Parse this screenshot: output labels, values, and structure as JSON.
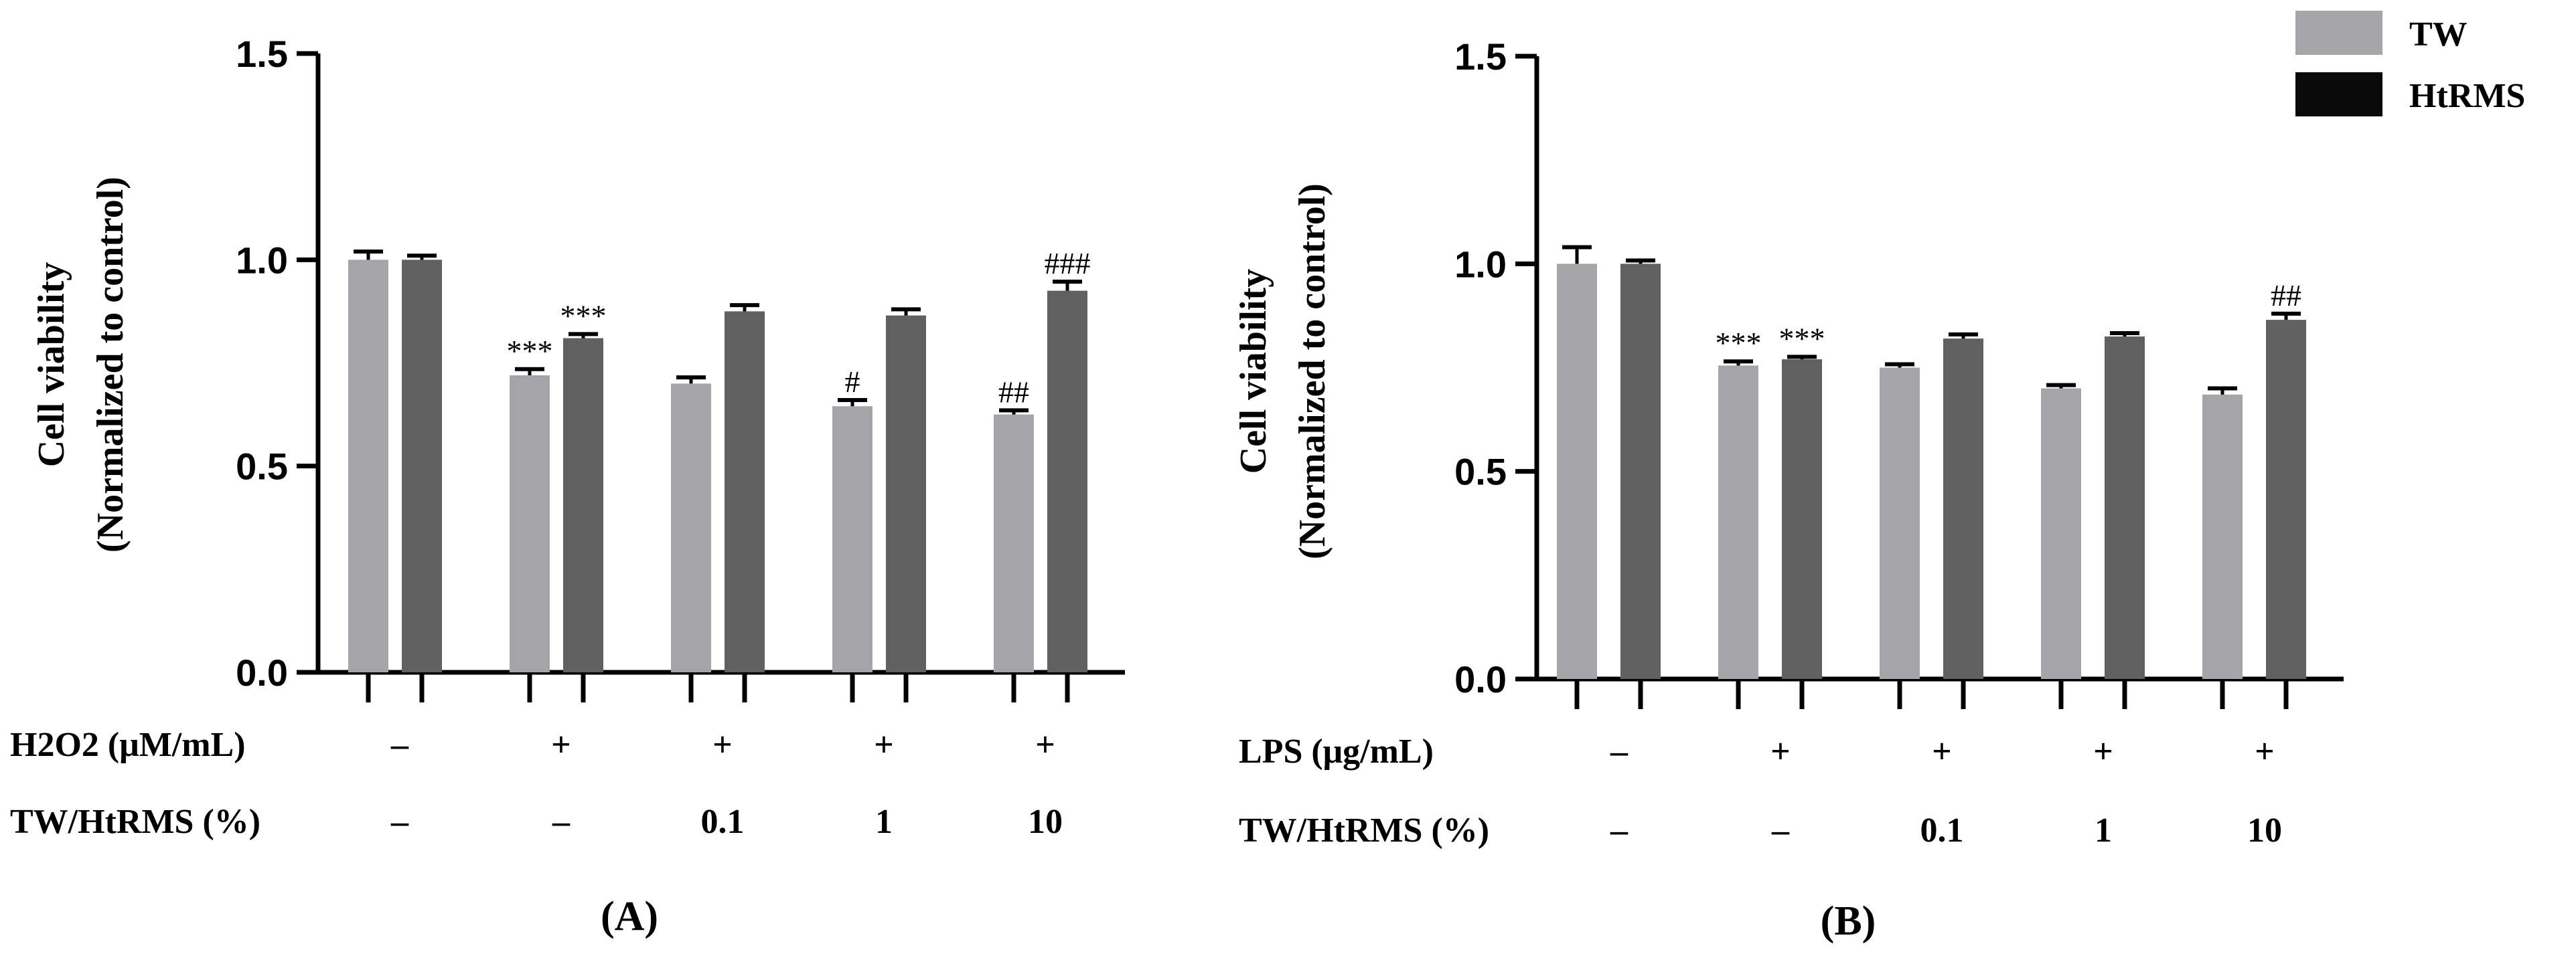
{
  "chart_data": [
    {
      "type": "bar",
      "panel": "(A)",
      "ylabel": [
        "Cell viability",
        "(Normalized to control)"
      ],
      "ylim": [
        0,
        1.5
      ],
      "yticks": [
        0.0,
        0.5,
        1.0,
        1.5
      ],
      "ytick_labels": [
        "0.0",
        "0.5",
        "1.0",
        "1.5"
      ],
      "rows": [
        {
          "label": "H2O2 (μM/mL)",
          "values": [
            "–",
            "+",
            "+",
            "+",
            "+"
          ]
        },
        {
          "label": "TW/HtRMS (%)",
          "values": [
            "–",
            "–",
            "0.1",
            "1",
            "10"
          ]
        }
      ],
      "series": [
        {
          "name": "TW",
          "color": "#a5a4a8",
          "values": [
            1.0,
            0.72,
            0.7,
            0.645,
            0.625
          ],
          "errors": [
            0.02,
            0.015,
            0.015,
            0.015,
            0.01
          ],
          "annotations": [
            "",
            "***",
            "",
            "#",
            "##"
          ]
        },
        {
          "name": "HtRMS",
          "color": "#606060",
          "values": [
            1.0,
            0.81,
            0.875,
            0.865,
            0.925
          ],
          "errors": [
            0.01,
            0.01,
            0.015,
            0.015,
            0.022
          ],
          "annotations": [
            "",
            "***",
            "",
            "",
            "###"
          ]
        }
      ]
    },
    {
      "type": "bar",
      "panel": "(B)",
      "ylabel": [
        "Cell viability",
        "(Normalized to control)"
      ],
      "ylim": [
        0,
        1.5
      ],
      "yticks": [
        0.0,
        0.5,
        1.0,
        1.5
      ],
      "ytick_labels": [
        "0.0",
        "0.5",
        "1.0",
        "1.5"
      ],
      "rows": [
        {
          "label": "LPS (μg/mL)",
          "values": [
            "–",
            "+",
            "+",
            "+",
            "+"
          ]
        },
        {
          "label": "TW/HtRMS (%)",
          "values": [
            "–",
            "–",
            "0.1",
            "1",
            "10"
          ]
        }
      ],
      "series": [
        {
          "name": "TW",
          "color": "#a5a4a8",
          "values": [
            1.0,
            0.755,
            0.75,
            0.7,
            0.685
          ],
          "errors": [
            0.04,
            0.01,
            0.008,
            0.008,
            0.015
          ],
          "annotations": [
            "",
            "***",
            "",
            "",
            ""
          ]
        },
        {
          "name": "HtRMS",
          "color": "#606060",
          "values": [
            1.0,
            0.77,
            0.82,
            0.825,
            0.865
          ],
          "errors": [
            0.008,
            0.006,
            0.01,
            0.008,
            0.015
          ],
          "annotations": [
            "",
            "***",
            "",
            "",
            "##"
          ]
        }
      ]
    }
  ],
  "legend": {
    "items": [
      {
        "label": "TW",
        "color": "#a5a4a8"
      },
      {
        "label": "HtRMS",
        "color": "#0a0a0a"
      }
    ]
  }
}
